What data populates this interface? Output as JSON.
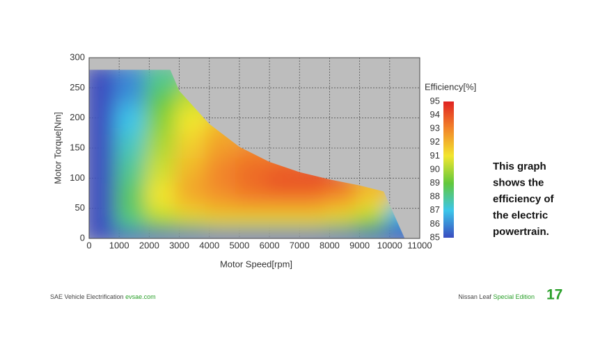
{
  "chart_data": {
    "type": "heatmap",
    "xlabel": "Motor Speed[rpm]",
    "ylabel": "Motor Torque[Nm]",
    "colorbar_label": "Efficiency[%]",
    "xlim": [
      0,
      11000
    ],
    "xticks": [
      0,
      1000,
      2000,
      3000,
      4000,
      5000,
      6000,
      7000,
      8000,
      9000,
      10000,
      11000
    ],
    "ylim": [
      0,
      300
    ],
    "yticks": [
      0,
      50,
      100,
      150,
      200,
      250,
      300
    ],
    "clim": [
      85,
      95
    ],
    "colorbar_ticks": [
      85,
      86,
      87,
      88,
      89,
      90,
      91,
      92,
      93,
      94,
      95
    ],
    "colormap": [
      "#3a4cc0",
      "#3cc6ea",
      "#62c83c",
      "#f2e62e",
      "#f2862a",
      "#e02222"
    ],
    "grid": true,
    "x": [
      500,
      1500,
      2500,
      3500,
      4500,
      5500,
      6500,
      7500,
      8500,
      9500,
      10500
    ],
    "y": [
      10,
      30,
      50,
      70,
      90,
      110,
      130,
      150,
      170,
      190,
      210,
      230,
      250,
      270
    ],
    "z": [
      [
        85,
        85,
        85,
        85,
        85,
        85,
        85,
        85,
        85,
        85,
        85
      ],
      [
        85,
        88,
        89.5,
        90,
        90.5,
        90.5,
        90.5,
        90.5,
        90,
        89,
        86
      ],
      [
        85,
        88.5,
        90.5,
        91.5,
        92,
        92,
        92,
        92,
        91.5,
        90.5,
        87
      ],
      [
        85,
        88.5,
        91,
        92,
        92.5,
        93,
        93,
        93,
        92.5,
        91.5,
        null
      ],
      [
        85,
        88.5,
        91,
        92.5,
        93,
        93.5,
        94,
        94,
        93.5,
        92,
        null
      ],
      [
        85,
        88,
        90.5,
        92,
        93,
        93.5,
        94,
        94,
        null,
        null,
        null
      ],
      [
        85,
        88,
        90.5,
        92,
        93,
        93.5,
        93.5,
        null,
        null,
        null,
        null
      ],
      [
        85,
        87.5,
        90,
        91.5,
        92.5,
        93,
        null,
        null,
        null,
        null,
        null
      ],
      [
        85,
        87.5,
        90,
        91.5,
        92.5,
        null,
        null,
        null,
        null,
        null,
        null
      ],
      [
        85,
        87,
        89.5,
        91,
        92,
        null,
        null,
        null,
        null,
        null,
        null
      ],
      [
        85,
        87,
        89.5,
        91,
        null,
        null,
        null,
        null,
        null,
        null,
        null
      ],
      [
        85,
        86.5,
        89,
        90.5,
        null,
        null,
        null,
        null,
        null,
        null,
        null
      ],
      [
        85,
        86,
        88.5,
        90,
        null,
        null,
        null,
        null,
        null,
        null,
        null
      ],
      [
        85,
        86,
        88,
        null,
        null,
        null,
        null,
        null,
        null,
        null,
        null
      ]
    ],
    "torque_limit": {
      "x": [
        0,
        2700,
        3000,
        4000,
        5000,
        6000,
        7000,
        8000,
        9000,
        9800,
        10500
      ],
      "values": [
        280,
        280,
        245,
        190,
        152,
        127,
        110,
        98,
        88,
        78,
        0
      ]
    },
    "annotation": [
      "This graph",
      "shows the",
      "efficiency of",
      "the electric",
      "powertrain."
    ]
  },
  "footer": {
    "left": "SAE Vehicle Electrification",
    "left_link": "evsae.com",
    "right": "Nissan Leaf",
    "right_highlight": "Special Edition",
    "page": "17"
  }
}
